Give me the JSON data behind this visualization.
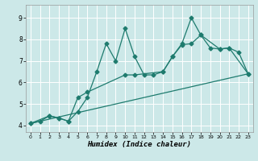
{
  "title": "",
  "xlabel": "Humidex (Indice chaleur)",
  "ylabel": "",
  "xlim": [
    -0.5,
    23.5
  ],
  "ylim": [
    3.7,
    9.6
  ],
  "xticks": [
    0,
    1,
    2,
    3,
    4,
    5,
    6,
    7,
    8,
    9,
    10,
    11,
    12,
    13,
    14,
    15,
    16,
    17,
    18,
    19,
    20,
    21,
    22,
    23
  ],
  "yticks": [
    4,
    5,
    6,
    7,
    8,
    9
  ],
  "bg_color": "#cce8e8",
  "line_color": "#1e7b6e",
  "grid_color": "#ffffff",
  "line1_x": [
    0,
    1,
    2,
    3,
    4,
    5,
    6,
    7,
    8,
    9,
    10,
    11,
    12,
    13,
    14,
    15,
    16,
    17,
    18,
    19,
    20,
    21,
    22,
    23
  ],
  "line1_y": [
    4.1,
    4.2,
    4.45,
    4.35,
    4.2,
    4.65,
    5.3,
    6.5,
    7.8,
    7.0,
    8.5,
    7.2,
    6.35,
    6.35,
    6.5,
    7.2,
    7.8,
    9.0,
    8.2,
    7.6,
    7.55,
    7.6,
    7.4,
    6.4
  ],
  "line2_x": [
    0,
    2,
    3,
    4,
    5,
    6,
    10,
    11,
    14,
    15,
    16,
    17,
    18,
    20,
    21,
    23
  ],
  "line2_y": [
    4.1,
    4.45,
    4.35,
    4.2,
    5.3,
    5.55,
    6.35,
    6.35,
    6.5,
    7.2,
    7.75,
    7.8,
    8.2,
    7.55,
    7.6,
    6.4
  ],
  "line3_x": [
    0,
    23
  ],
  "line3_y": [
    4.1,
    6.4
  ]
}
